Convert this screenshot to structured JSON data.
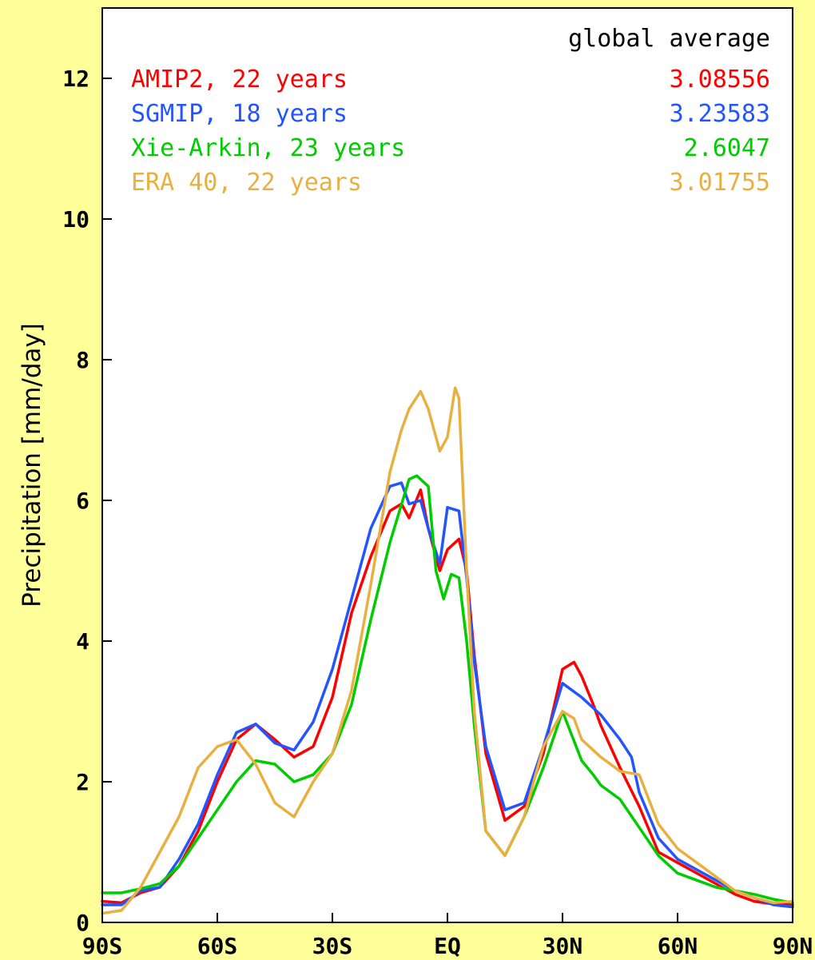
{
  "chart_data": {
    "type": "line",
    "title": "",
    "xlabel": "",
    "ylabel": "Precipitation [mm/day]",
    "x_range": [
      -90,
      90
    ],
    "ylim": [
      0,
      13
    ],
    "x_ticks": [
      -90,
      -60,
      -30,
      0,
      30,
      60,
      90
    ],
    "x_tick_labels": [
      "90S",
      "60S",
      "30S",
      "EQ",
      "30N",
      "60N",
      "90N"
    ],
    "y_ticks": [
      0,
      2,
      4,
      6,
      8,
      10,
      12
    ],
    "y_tick_labels": [
      "0",
      "2",
      "4",
      "6",
      "8",
      "10",
      "12"
    ],
    "grid": false,
    "legend_header": "global average",
    "legend_placement": "top",
    "series": [
      {
        "name": "AMIP2, 22 years",
        "global_average": "3.08556",
        "color": "#ff0000",
        "x": [
          -90,
          -85,
          -80,
          -75,
          -70,
          -65,
          -60,
          -55,
          -50,
          -45,
          -40,
          -35,
          -30,
          -25,
          -20,
          -15,
          -12,
          -10,
          -7,
          -5,
          -2,
          0,
          3,
          5,
          7,
          10,
          15,
          20,
          25,
          30,
          33,
          35,
          38,
          40,
          45,
          50,
          55,
          60,
          65,
          70,
          75,
          80,
          85,
          90
        ],
        "y": [
          0.3,
          0.28,
          0.42,
          0.5,
          0.8,
          1.3,
          2.0,
          2.6,
          2.82,
          2.6,
          2.35,
          2.5,
          3.2,
          4.4,
          5.2,
          5.85,
          5.95,
          5.75,
          6.15,
          5.6,
          5.0,
          5.3,
          5.45,
          5.0,
          3.8,
          2.4,
          1.45,
          1.65,
          2.4,
          3.6,
          3.7,
          3.5,
          3.1,
          2.8,
          2.2,
          1.65,
          1.0,
          0.85,
          0.7,
          0.55,
          0.4,
          0.3,
          0.26,
          0.25
        ]
      },
      {
        "name": "SGMIP, 18 years",
        "global_average": "3.23583",
        "color": "#2255ff",
        "x": [
          -90,
          -85,
          -80,
          -75,
          -70,
          -65,
          -60,
          -55,
          -50,
          -45,
          -40,
          -35,
          -30,
          -25,
          -20,
          -15,
          -12,
          -10,
          -7,
          -5,
          -2,
          0,
          3,
          5,
          7,
          10,
          15,
          20,
          25,
          30,
          35,
          40,
          45,
          48,
          50,
          55,
          60,
          65,
          70,
          75,
          80,
          85,
          90
        ],
        "y": [
          0.25,
          0.25,
          0.45,
          0.5,
          0.9,
          1.4,
          2.1,
          2.7,
          2.82,
          2.55,
          2.45,
          2.85,
          3.6,
          4.6,
          5.6,
          6.2,
          6.25,
          5.95,
          6.0,
          5.6,
          5.1,
          5.9,
          5.85,
          4.9,
          3.7,
          2.5,
          1.6,
          1.7,
          2.5,
          3.4,
          3.2,
          2.95,
          2.6,
          2.35,
          1.85,
          1.2,
          0.9,
          0.75,
          0.6,
          0.45,
          0.35,
          0.25,
          0.22
        ]
      },
      {
        "name": "Xie-Arkin, 23 years",
        "global_average": "2.6047",
        "color": "#00cc00",
        "x": [
          -90,
          -85,
          -80,
          -75,
          -70,
          -65,
          -60,
          -55,
          -50,
          -45,
          -40,
          -35,
          -30,
          -25,
          -20,
          -15,
          -10,
          -8,
          -5,
          -3,
          -1,
          1,
          3,
          5,
          7,
          10,
          15,
          20,
          25,
          30,
          35,
          38,
          40,
          45,
          50,
          55,
          60,
          65,
          70,
          75,
          80,
          85,
          90
        ],
        "y": [
          0.42,
          0.42,
          0.48,
          0.55,
          0.8,
          1.2,
          1.6,
          2.0,
          2.3,
          2.25,
          2.0,
          2.1,
          2.4,
          3.1,
          4.3,
          5.4,
          6.3,
          6.35,
          6.2,
          5.0,
          4.6,
          4.95,
          4.9,
          4.0,
          2.8,
          1.3,
          0.95,
          1.5,
          2.2,
          3.0,
          2.3,
          2.1,
          1.95,
          1.75,
          1.35,
          0.95,
          0.7,
          0.6,
          0.5,
          0.45,
          0.4,
          0.33,
          0.28
        ]
      },
      {
        "name": "ERA 40, 22 years",
        "global_average": "3.01755",
        "color": "#e8b040",
        "x": [
          -90,
          -85,
          -80,
          -75,
          -70,
          -65,
          -60,
          -55,
          -50,
          -45,
          -40,
          -35,
          -30,
          -25,
          -20,
          -15,
          -12,
          -10,
          -7,
          -5,
          -2,
          0,
          2,
          3,
          5,
          7,
          10,
          15,
          20,
          25,
          30,
          33,
          35,
          38,
          40,
          45,
          50,
          55,
          60,
          65,
          70,
          75,
          80,
          85,
          90
        ],
        "y": [
          0.13,
          0.17,
          0.5,
          1.0,
          1.5,
          2.2,
          2.5,
          2.6,
          2.25,
          1.7,
          1.5,
          2.0,
          2.4,
          3.3,
          4.8,
          6.4,
          7.0,
          7.3,
          7.55,
          7.3,
          6.7,
          6.9,
          7.6,
          7.45,
          5.0,
          3.0,
          1.3,
          0.95,
          1.5,
          2.5,
          3.0,
          2.9,
          2.6,
          2.45,
          2.35,
          2.15,
          2.1,
          1.4,
          1.05,
          0.85,
          0.65,
          0.45,
          0.35,
          0.28,
          0.3
        ]
      }
    ]
  }
}
